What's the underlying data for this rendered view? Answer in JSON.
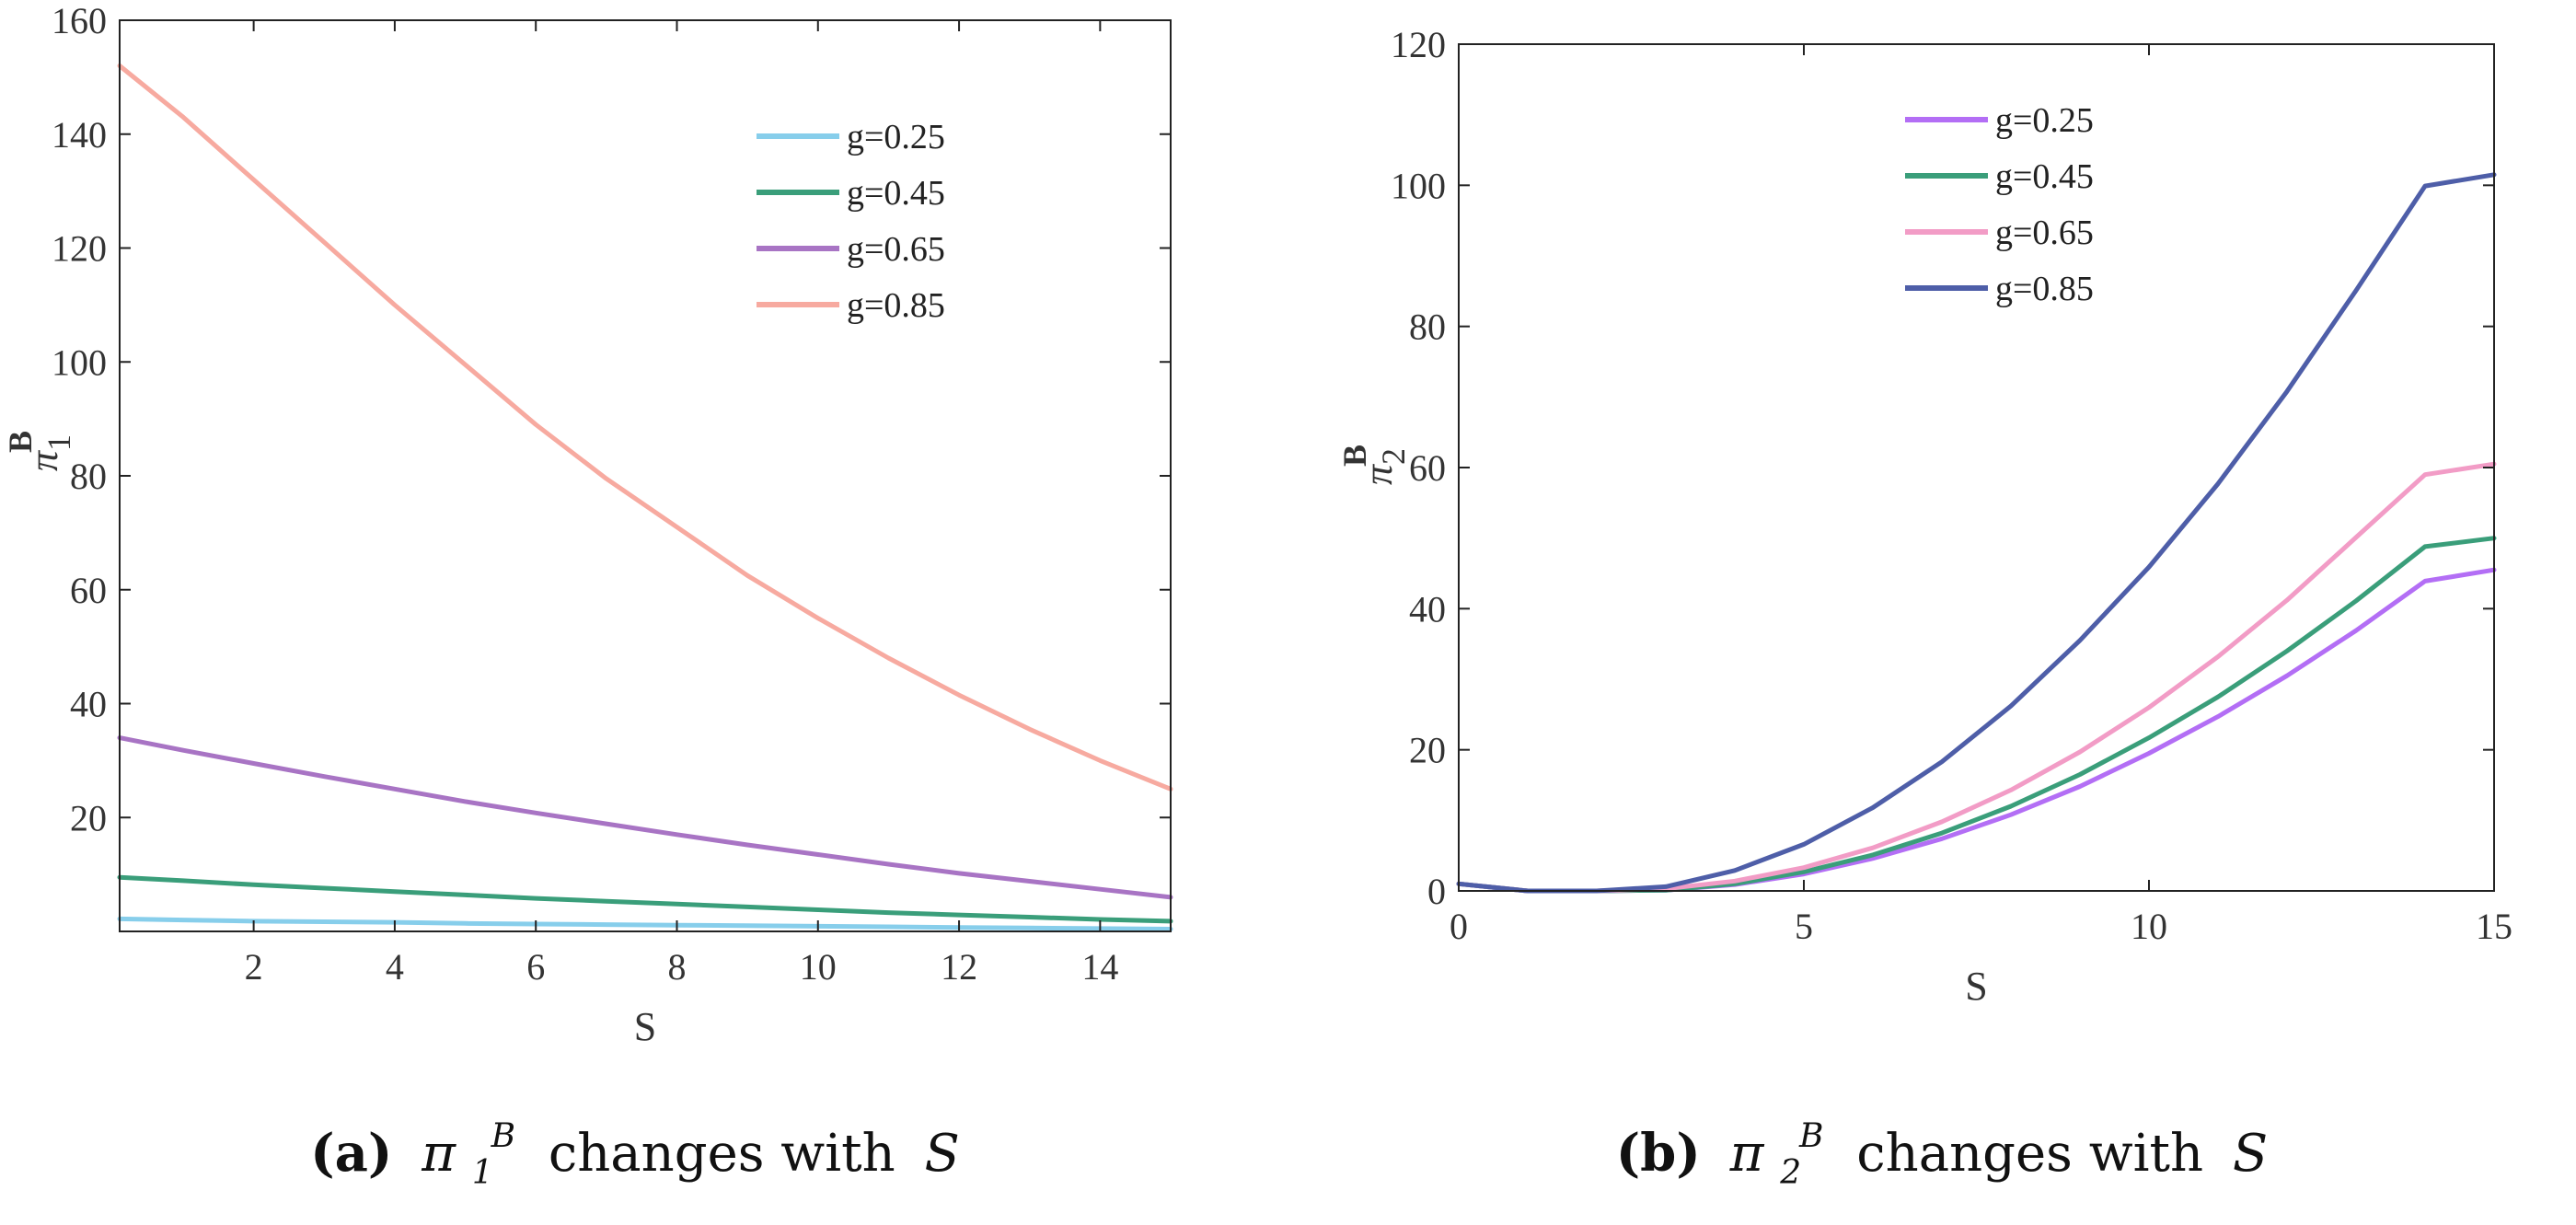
{
  "chart_data": [
    {
      "type": "line",
      "x": [
        0.1,
        1,
        2,
        3,
        4,
        5,
        6,
        7,
        8,
        9,
        10,
        11,
        12,
        13,
        14,
        15
      ],
      "xlim": [
        0.1,
        15
      ],
      "ylim": [
        0,
        160
      ],
      "xticks": [
        2,
        4,
        6,
        8,
        10,
        12,
        14
      ],
      "yticks": [
        20,
        40,
        60,
        80,
        100,
        120,
        140,
        160
      ],
      "xlabel": "S",
      "ylabel": {
        "base": "π",
        "sup": "B",
        "sub": "1"
      },
      "legend_position": "top-right",
      "series": [
        {
          "name": "g=0.25",
          "color": "#87ceeb",
          "values": [
            2.2,
            2.0,
            1.8,
            1.7,
            1.6,
            1.4,
            1.3,
            1.2,
            1.1,
            1.0,
            0.9,
            0.8,
            0.7,
            0.6,
            0.5,
            0.4
          ]
        },
        {
          "name": "g=0.45",
          "color": "#3a9e7a",
          "values": [
            9.5,
            8.9,
            8.2,
            7.6,
            7.0,
            6.4,
            5.8,
            5.3,
            4.8,
            4.3,
            3.8,
            3.3,
            2.9,
            2.5,
            2.1,
            1.8
          ]
        },
        {
          "name": "g=0.65",
          "color": "#a874c4",
          "values": [
            34,
            31.8,
            29.5,
            27.2,
            25,
            22.8,
            20.8,
            18.9,
            17,
            15.2,
            13.5,
            11.8,
            10.2,
            8.8,
            7.4,
            6
          ]
        },
        {
          "name": "g=0.85",
          "color": "#f7aaa0",
          "values": [
            152,
            143,
            132,
            121,
            110,
            99.5,
            89,
            79.5,
            71,
            62.5,
            55,
            48,
            41.5,
            35.5,
            30,
            25
          ]
        }
      ],
      "caption": {
        "label": "(a)",
        "symbol": "π",
        "sub": "1",
        "sup": "B",
        "text": "changes with",
        "var": "S"
      }
    },
    {
      "type": "line",
      "x": [
        0,
        1,
        2,
        3,
        4,
        5,
        6,
        7,
        8,
        9,
        10,
        11,
        12,
        13,
        14,
        15
      ],
      "xlim": [
        0,
        15
      ],
      "ylim": [
        0,
        120
      ],
      "xticks": [
        0,
        5,
        10,
        15
      ],
      "yticks": [
        0,
        20,
        40,
        60,
        80,
        100,
        120
      ],
      "xlabel": "S",
      "ylabel": {
        "base": "π",
        "sup": "B",
        "sub": "2"
      },
      "legend_position": "top-center",
      "series": [
        {
          "name": "g=0.25",
          "color": "#b36ef5",
          "values": [
            1.0,
            0.0,
            0.0,
            0.1,
            0.9,
            2.4,
            4.6,
            7.4,
            10.8,
            14.8,
            19.5,
            24.7,
            30.5,
            36.9,
            43.9,
            45.5
          ]
        },
        {
          "name": "g=0.45",
          "color": "#3a9e7a",
          "values": [
            1.0,
            0.0,
            0.0,
            0.1,
            1.0,
            2.7,
            5.1,
            8.2,
            12.0,
            16.5,
            21.7,
            27.5,
            34.0,
            41.1,
            48.8,
            50.0
          ]
        },
        {
          "name": "g=0.65",
          "color": "#f29cc6",
          "values": [
            1.0,
            0.0,
            0.0,
            0.3,
            1.4,
            3.3,
            6.1,
            9.8,
            14.3,
            19.7,
            26.0,
            33.2,
            41.2,
            50.1,
            59.0,
            60.5
          ]
        },
        {
          "name": "g=0.85",
          "color": "#4e5ea8",
          "values": [
            1.0,
            0.0,
            0.0,
            0.6,
            2.9,
            6.6,
            11.8,
            18.3,
            26.2,
            35.5,
            45.9,
            57.7,
            70.8,
            85.1,
            99.9,
            101.5
          ]
        }
      ],
      "caption": {
        "label": "(b)",
        "symbol": "π",
        "sub": "2",
        "sup": "B",
        "text": "changes with",
        "var": "S"
      }
    }
  ]
}
